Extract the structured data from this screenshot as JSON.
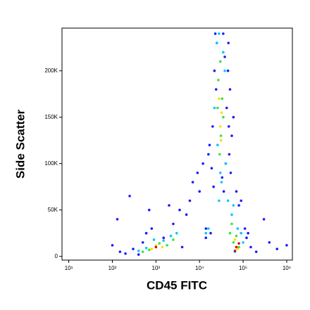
{
  "chart_data": {
    "type": "scatter",
    "x_label": "CD45 FITC",
    "y_label": "Side Scatter",
    "xscale": "log",
    "xlim": [
      7,
      1350000
    ],
    "xticks": [
      {
        "value": 10,
        "label": "10¹"
      },
      {
        "value": 100,
        "label": "10²"
      },
      {
        "value": 1000,
        "label": "10³"
      },
      {
        "value": 10000,
        "label": "10⁴"
      },
      {
        "value": 100000,
        "label": "10⁵"
      },
      {
        "value": 1000000,
        "label": "10⁶"
      }
    ],
    "ylim": [
      -4000,
      246000
    ],
    "yticks": [
      0,
      {
        "value": 50000,
        "label": "50K"
      },
      {
        "value": 100000,
        "label": "100K"
      },
      {
        "value": 150000,
        "label": "150K"
      },
      {
        "value": 200000,
        "label": "200K"
      }
    ],
    "series": [
      {
        "color": "#1a1aff",
        "x": [
          150,
          200,
          300,
          400,
          500,
          600,
          800,
          1500,
          2500,
          3500,
          4000,
          5000,
          6000,
          7000,
          9000,
          12000,
          14000,
          16000,
          18000,
          20000,
          22000,
          25000,
          45000,
          50000,
          60000,
          90000,
          110000,
          120000,
          150000,
          200000,
          300000,
          100,
          130,
          250,
          700,
          2000,
          10000,
          14000,
          17000,
          19000,
          23000,
          42000,
          48000,
          55000,
          46000,
          52000,
          38000,
          40000,
          36000,
          24000,
          21000,
          33000,
          35000,
          47000,
          80000,
          70000,
          130000,
          400000,
          600000,
          1000000
        ],
        "values": [
          5000,
          3000,
          8000,
          2000,
          15000,
          25000,
          30000,
          20000,
          35000,
          50000,
          10000,
          45000,
          60000,
          80000,
          90000,
          100000,
          20000,
          110000,
          25000,
          140000,
          200000,
          230000,
          200000,
          180000,
          150000,
          60000,
          30000,
          20000,
          10000,
          5000,
          40000,
          12000,
          40000,
          65000,
          50000,
          55000,
          70000,
          30000,
          120000,
          95000,
          240000,
          160000,
          110000,
          130000,
          230000,
          90000,
          215000,
          100000,
          70000,
          180000,
          75000,
          85000,
          240000,
          140000,
          55000,
          70000,
          25000,
          15000,
          8000,
          12000
        ]
      },
      {
        "color": "#00c8ff",
        "x": [
          400,
          600,
          900,
          1500,
          2200,
          3000,
          25000,
          28000,
          35000,
          38000,
          26000,
          40000,
          30000,
          22000,
          45000,
          55000,
          60000,
          75000,
          90000,
          100000,
          65000,
          14000,
          16000,
          28000,
          32000
        ],
        "values": [
          6000,
          9000,
          18000,
          17000,
          22000,
          25000,
          230000,
          240000,
          220000,
          200000,
          120000,
          100000,
          90000,
          160000,
          60000,
          45000,
          55000,
          30000,
          25000,
          15000,
          5000,
          25000,
          30000,
          60000,
          80000
        ]
      },
      {
        "color": "#40e040",
        "x": [
          500,
          700,
          1200,
          1800,
          2500,
          27000,
          30000,
          33000,
          29000,
          31000,
          35000,
          26000,
          60000,
          70000,
          80000,
          55000,
          50000
        ],
        "values": [
          5000,
          7000,
          14000,
          12000,
          18000,
          190000,
          210000,
          170000,
          110000,
          130000,
          150000,
          160000,
          15000,
          22000,
          10000,
          35000,
          25000
        ]
      },
      {
        "color": "#ffe000",
        "x": [
          800,
          1000,
          1400,
          30000,
          32000,
          28000,
          31000,
          65000,
          75000
        ],
        "values": [
          8000,
          12000,
          10000,
          140000,
          155000,
          170000,
          125000,
          18000,
          8000
        ]
      },
      {
        "color": "#e00000",
        "x": [
          1000,
          70000,
          80000,
          65000
        ],
        "values": [
          10000,
          10000,
          14000,
          6000
        ]
      }
    ]
  }
}
